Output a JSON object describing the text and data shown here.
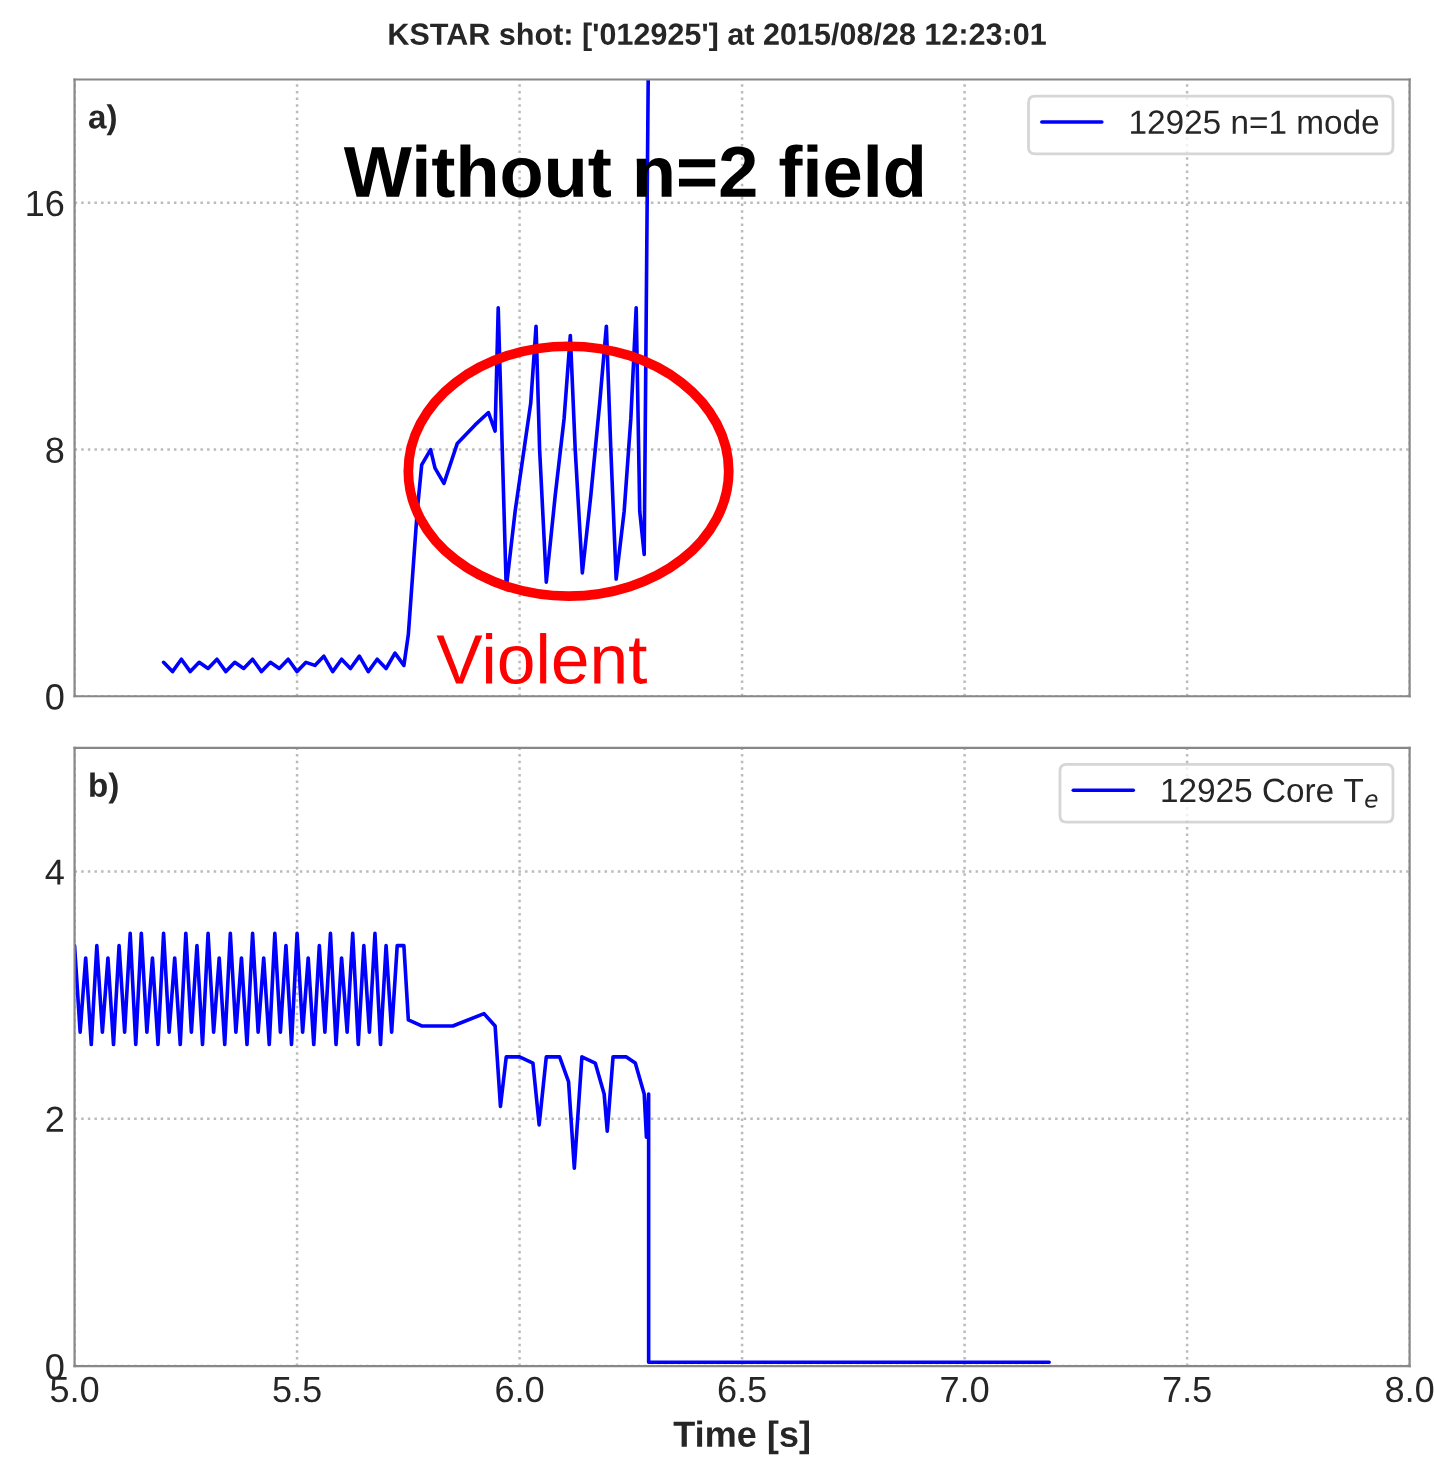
{
  "chart_data": [
    {
      "type": "line",
      "title": "KSTAR shot: ['012925'] at 2015/08/28 12:23:01",
      "annotations": [
        "a)",
        "Without n=2 field",
        "Violent"
      ],
      "series": [
        {
          "name": "12925 n=1 mode",
          "color": "#0000ff",
          "x": [
            5.2,
            5.22,
            5.24,
            5.26,
            5.28,
            5.3,
            5.32,
            5.34,
            5.36,
            5.38,
            5.4,
            5.42,
            5.44,
            5.46,
            5.48,
            5.5,
            5.52,
            5.54,
            5.56,
            5.58,
            5.6,
            5.62,
            5.64,
            5.66,
            5.68,
            5.7,
            5.72,
            5.74,
            5.75,
            5.77,
            5.78,
            5.8,
            5.81,
            5.83,
            5.86,
            5.9,
            5.93,
            5.945,
            5.952,
            5.97,
            5.99,
            6.01,
            6.025,
            6.037,
            6.045,
            6.06,
            6.08,
            6.1,
            6.114,
            6.125,
            6.141,
            6.16,
            6.18,
            6.195,
            6.205,
            6.217,
            6.235,
            6.25,
            6.262,
            6.27,
            6.28,
            6.289
          ],
          "values": [
            1.1,
            0.8,
            1.2,
            0.8,
            1.1,
            0.9,
            1.2,
            0.8,
            1.1,
            0.9,
            1.2,
            0.8,
            1.1,
            0.9,
            1.2,
            0.8,
            1.1,
            1.0,
            1.3,
            0.8,
            1.2,
            0.9,
            1.3,
            0.8,
            1.2,
            0.9,
            1.4,
            1.0,
            2.0,
            6.0,
            7.5,
            8.0,
            7.4,
            6.9,
            8.2,
            8.8,
            9.2,
            8.6,
            12.6,
            3.5,
            6.0,
            8.0,
            9.5,
            12.0,
            8.0,
            3.7,
            6.5,
            9.0,
            11.7,
            8.0,
            4.0,
            6.5,
            9.5,
            12.0,
            8.0,
            3.8,
            6.0,
            9.0,
            12.6,
            6.0,
            4.6,
            20
          ]
        }
      ],
      "xlim": [
        5.0,
        8.0
      ],
      "xticks": [
        5.0,
        5.5,
        6.0,
        6.5,
        7.0,
        7.5,
        8.0
      ],
      "ylim": [
        0,
        20
      ],
      "yticks": [
        0,
        8,
        16
      ],
      "tick_labels": "y",
      "grid": true,
      "legend": "top right",
      "line_style": "solid"
    },
    {
      "type": "line",
      "xlabel": "Time [s]",
      "annotations": [
        "b)"
      ],
      "series": [
        {
          "name": "12925 Core T$_{e}$",
          "color": "#0000ff",
          "x": [
            5.0,
            5.0125,
            5.025,
            5.0375,
            5.05,
            5.0625,
            5.075,
            5.0875,
            5.1,
            5.1125,
            5.125,
            5.1375,
            5.15,
            5.1625,
            5.175,
            5.1875,
            5.2,
            5.2125,
            5.225,
            5.2375,
            5.25,
            5.2625,
            5.275,
            5.2875,
            5.3,
            5.3125,
            5.325,
            5.3375,
            5.35,
            5.3625,
            5.375,
            5.3875,
            5.4,
            5.4125,
            5.425,
            5.4375,
            5.45,
            5.4625,
            5.475,
            5.4875,
            5.5,
            5.5125,
            5.525,
            5.5375,
            5.55,
            5.5625,
            5.575,
            5.5875,
            5.6,
            5.6125,
            5.625,
            5.6375,
            5.65,
            5.6625,
            5.675,
            5.6875,
            5.7,
            5.7125,
            5.725,
            5.74,
            5.75,
            5.78,
            5.85,
            5.92,
            5.945,
            5.957,
            5.97,
            6.0,
            6.03,
            6.044,
            6.06,
            6.09,
            6.11,
            6.123,
            6.14,
            6.17,
            6.19,
            6.197,
            6.21,
            6.24,
            6.26,
            6.28,
            6.285,
            6.29,
            6.29,
            6.5,
            7.0,
            7.19
          ],
          "values": [
            3.4,
            2.7,
            3.3,
            2.6,
            3.4,
            2.7,
            3.3,
            2.6,
            3.4,
            2.7,
            3.5,
            2.6,
            3.5,
            2.7,
            3.3,
            2.6,
            3.5,
            2.7,
            3.3,
            2.6,
            3.5,
            2.7,
            3.4,
            2.6,
            3.5,
            2.7,
            3.3,
            2.6,
            3.5,
            2.7,
            3.3,
            2.6,
            3.5,
            2.7,
            3.3,
            2.6,
            3.5,
            2.7,
            3.4,
            2.6,
            3.5,
            2.7,
            3.3,
            2.6,
            3.4,
            2.7,
            3.5,
            2.6,
            3.3,
            2.7,
            3.5,
            2.6,
            3.4,
            2.7,
            3.5,
            2.6,
            3.4,
            2.7,
            3.4,
            3.4,
            2.8,
            2.75,
            2.75,
            2.85,
            2.75,
            2.1,
            2.5,
            2.5,
            2.45,
            1.95,
            2.5,
            2.5,
            2.3,
            1.6,
            2.5,
            2.45,
            2.2,
            1.9,
            2.5,
            2.5,
            2.45,
            2.2,
            1.85,
            2.2,
            0.03,
            0.03,
            0.03,
            0.03
          ]
        }
      ],
      "xlim": [
        5.0,
        8.0
      ],
      "xticks": [
        {
          "value": 5,
          "label": "5.0"
        },
        5.5,
        {
          "value": 6,
          "label": "6.0"
        },
        6.5,
        {
          "value": 7,
          "label": "7.0"
        },
        7.5,
        {
          "value": 8,
          "label": "8.0"
        }
      ],
      "ylim": [
        0,
        5
      ],
      "yticks": [
        0,
        2,
        4
      ],
      "grid": true,
      "legend": "top right",
      "line_style": "solid"
    }
  ]
}
